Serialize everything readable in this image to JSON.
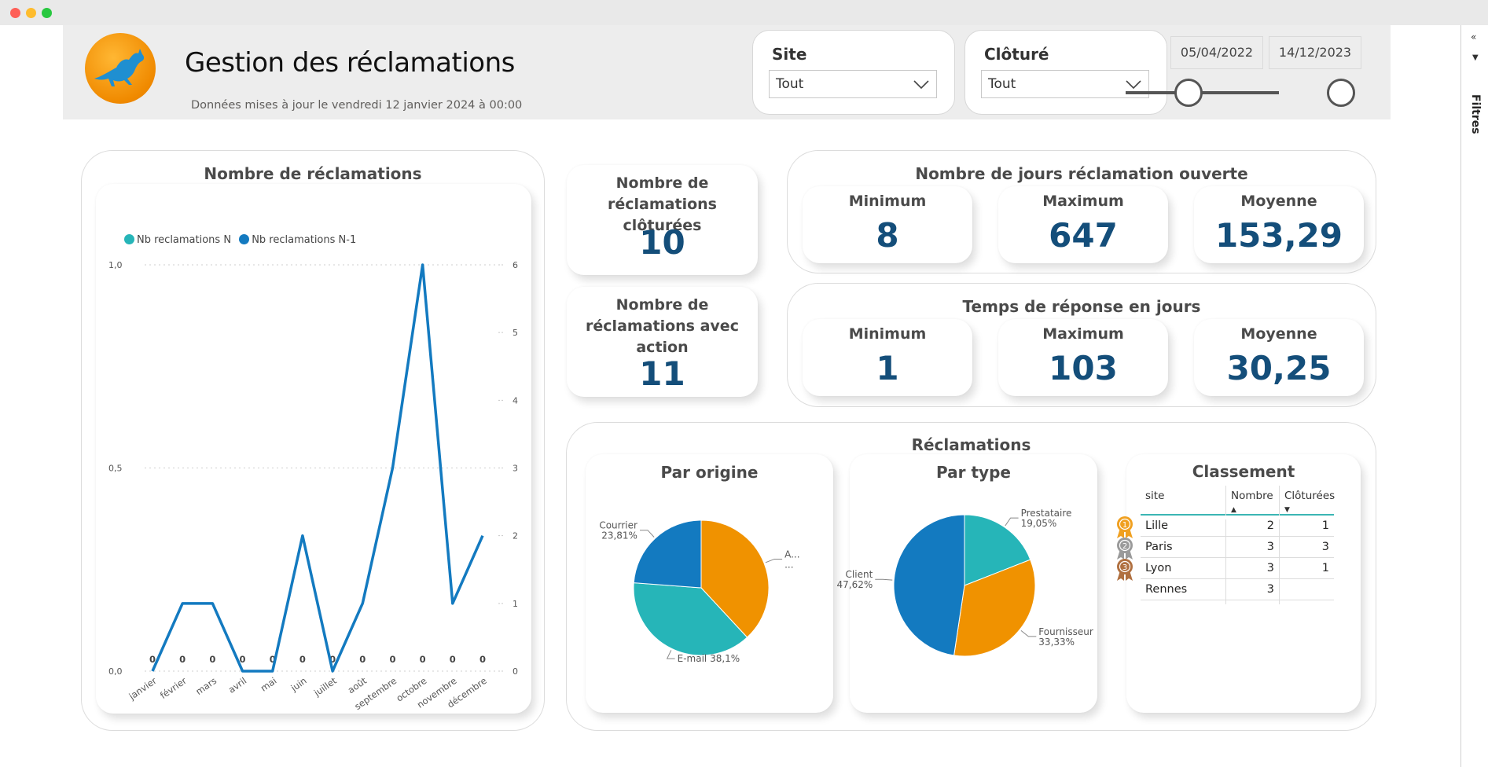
{
  "header": {
    "title": "Gestion des réclamations",
    "subtitle": "Données mises à jour le vendredi 12 janvier 2024 à 00:00"
  },
  "filters": {
    "site": {
      "label": "Site",
      "value": "Tout"
    },
    "cloture": {
      "label": "Clôturé",
      "value": "Tout"
    },
    "date_start": "05/04/2022",
    "date_end": "14/12/2023",
    "pane_label": "Filtres"
  },
  "colors": {
    "teal": "#26b5b8",
    "blue": "#137ac0",
    "orange": "#f09200",
    "kpi": "#144e7a"
  },
  "line_panel": {
    "title": "Nombre de réclamations",
    "legend": [
      "Nb reclamations N",
      "Nb reclamations N-1"
    ]
  },
  "kpis": {
    "closed": {
      "label": "Nombre de réclamations clôturées",
      "value": "10"
    },
    "action": {
      "label": "Nombre de réclamations avec action",
      "value": "11"
    }
  },
  "open_days": {
    "title": "Nombre de jours réclamation ouverte",
    "min": {
      "label": "Minimum",
      "value": "8"
    },
    "max": {
      "label": "Maximum",
      "value": "647"
    },
    "avg": {
      "label": "Moyenne",
      "value": "153,29"
    }
  },
  "response": {
    "title": "Temps de réponse en jours",
    "min": {
      "label": "Minimum",
      "value": "1"
    },
    "max": {
      "label": "Maximum",
      "value": "103"
    },
    "avg": {
      "label": "Moyenne",
      "value": "30,25"
    }
  },
  "reclamations": {
    "title": "Réclamations",
    "origin_title": "Par origine",
    "type_title": "Par type",
    "ranking_title": "Classement"
  },
  "ranking": {
    "headers": [
      "site",
      "Nombre",
      "Clôturées"
    ],
    "rows": [
      {
        "site": "Lille",
        "nombre": "2",
        "cloturees": "1",
        "medal": "1"
      },
      {
        "site": "Paris",
        "nombre": "3",
        "cloturees": "3",
        "medal": "2"
      },
      {
        "site": "Lyon",
        "nombre": "3",
        "cloturees": "1",
        "medal": "3"
      },
      {
        "site": "Rennes",
        "nombre": "3",
        "cloturees": "",
        "medal": ""
      }
    ]
  },
  "chart_data": [
    {
      "type": "line",
      "title": "Nombre de réclamations",
      "categories": [
        "janvier",
        "février",
        "mars",
        "avril",
        "mai",
        "juin",
        "juillet",
        "août",
        "septembre",
        "octobre",
        "novembre",
        "décembre"
      ],
      "series": [
        {
          "name": "Nb reclamations N",
          "axis": "left",
          "color": "#26b5b8",
          "values": [
            0,
            0,
            0,
            0,
            0,
            0,
            0,
            0,
            0,
            0,
            0,
            0
          ],
          "labels": [
            "0",
            "0",
            "0",
            "0",
            "0",
            "0",
            "0",
            "0",
            "0",
            "0",
            "0",
            "0"
          ]
        },
        {
          "name": "Nb reclamations N-1",
          "axis": "right",
          "color": "#137ac0",
          "values": [
            0,
            1,
            1,
            0,
            0,
            2,
            0,
            1,
            3,
            6,
            1,
            2
          ]
        }
      ],
      "y_left": {
        "ticks": [
          "0,0",
          "0,5",
          "1,0"
        ],
        "lim": [
          0,
          1
        ]
      },
      "y_right": {
        "ticks": [
          "0",
          "1",
          "2",
          "3",
          "4",
          "5",
          "6"
        ],
        "lim": [
          0,
          6
        ]
      },
      "grid": true,
      "legend": "top-left"
    },
    {
      "type": "pie",
      "title": "Par origine",
      "slices": [
        {
          "label": "A...",
          "pct": 38.09,
          "pct_label": "...",
          "color": "#f09200"
        },
        {
          "label": "E-mail",
          "pct": 38.1,
          "pct_label": "38,1%",
          "color": "#26b5b8"
        },
        {
          "label": "Courrier",
          "pct": 23.81,
          "pct_label": "23,81%",
          "color": "#137ac0"
        }
      ]
    },
    {
      "type": "pie",
      "title": "Par type",
      "slices": [
        {
          "label": "Prestataire",
          "pct": 19.05,
          "pct_label": "19,05%",
          "color": "#26b5b8"
        },
        {
          "label": "Fournisseur",
          "pct": 33.33,
          "pct_label": "33,33%",
          "color": "#f09200"
        },
        {
          "label": "Client",
          "pct": 47.62,
          "pct_label": "47,62%",
          "color": "#137ac0"
        }
      ]
    }
  ]
}
